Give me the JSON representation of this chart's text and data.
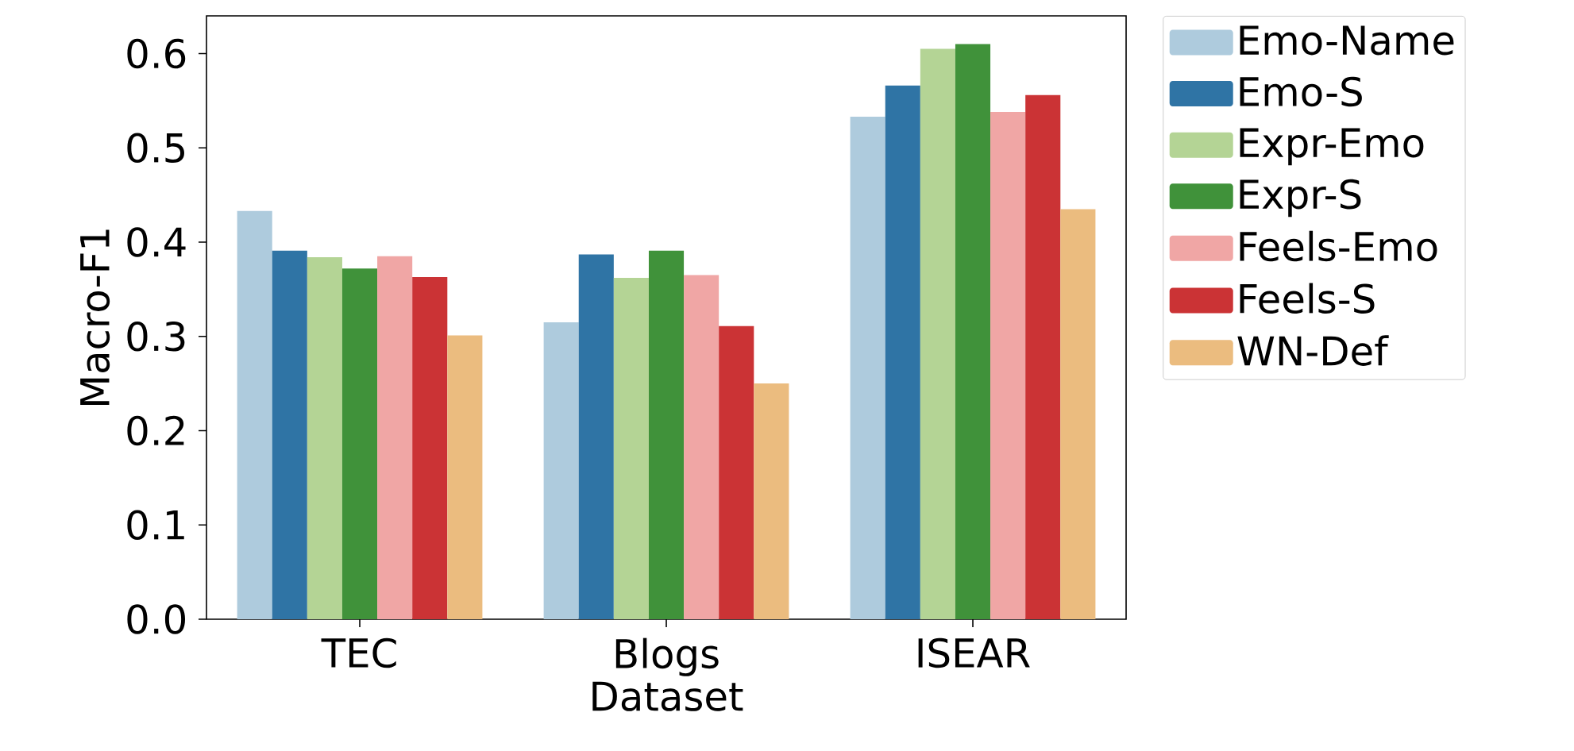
{
  "chart_data": {
    "type": "bar",
    "xlabel": "Dataset",
    "ylabel": "Macro-F1",
    "categories": [
      "TEC",
      "Blogs",
      "ISEAR"
    ],
    "ylim": [
      0,
      0.64
    ],
    "yticks": [
      {
        "value": 0,
        "label": "0.0"
      },
      0.1,
      0.2,
      0.3,
      0.4,
      0.5,
      0.6
    ],
    "grid": false,
    "legend": "top right",
    "series": [
      {
        "name": "Emo-Name",
        "color": "#aecbdd",
        "values": [
          0.433,
          0.315,
          0.533
        ]
      },
      {
        "name": "Emo-S",
        "color": "#2f74a5",
        "values": [
          0.391,
          0.387,
          0.566
        ]
      },
      {
        "name": "Expr-Emo",
        "color": "#b4d495",
        "values": [
          0.384,
          0.362,
          0.605
        ]
      },
      {
        "name": "Expr-S",
        "color": "#40923a",
        "values": [
          0.372,
          0.391,
          0.61
        ]
      },
      {
        "name": "Feels-Emo",
        "color": "#f0a6a5",
        "values": [
          0.385,
          0.365,
          0.538
        ]
      },
      {
        "name": "Feels-S",
        "color": "#cb3335",
        "values": [
          0.363,
          0.311,
          0.556
        ]
      },
      {
        "name": "WN-Def",
        "color": "#ebbc7f",
        "values": [
          0.301,
          0.25,
          0.435
        ]
      }
    ]
  }
}
